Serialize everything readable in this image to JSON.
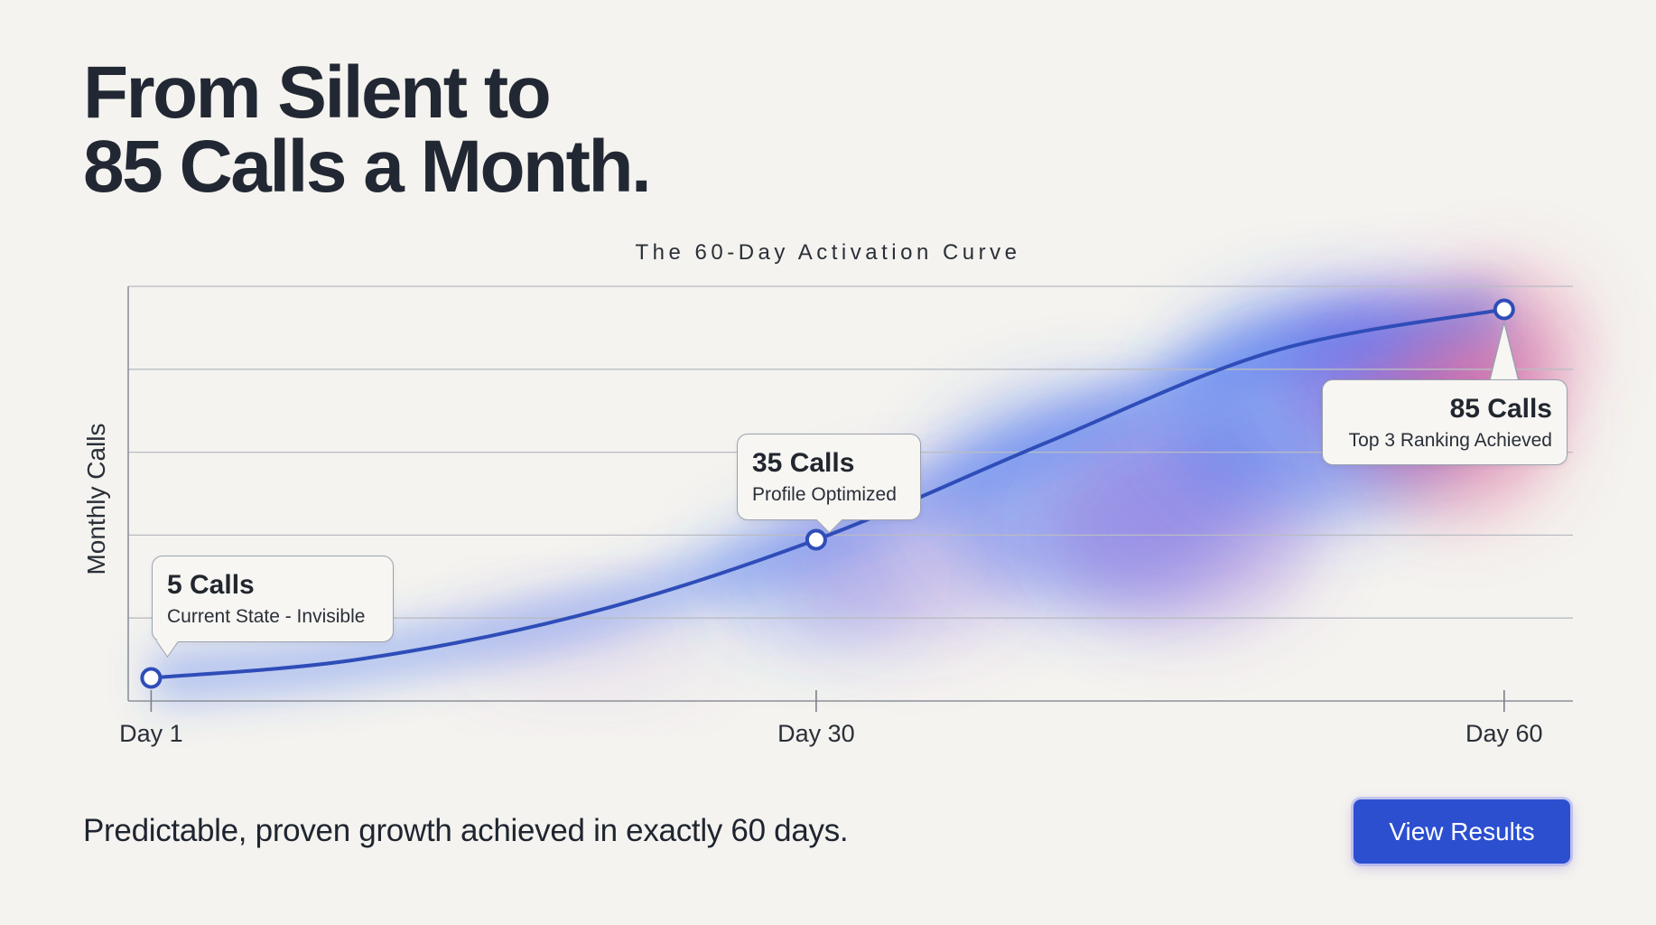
{
  "headline": {
    "line1": "From Silent to",
    "line2": "85 Calls a Month."
  },
  "chart_data": {
    "type": "line",
    "title": "The 60-Day Activation Curve",
    "xlabel": "",
    "ylabel": "Monthly Calls",
    "x_ticks": [
      {
        "value": 1,
        "label": "Day 1"
      },
      {
        "value": 30,
        "label": "Day 30"
      },
      {
        "value": 60,
        "label": "Day 60"
      }
    ],
    "xlim": [
      0,
      63
    ],
    "ylim": [
      0,
      90
    ],
    "grid": true,
    "series": [
      {
        "values": [
          {
            "x": 1,
            "y": 5
          },
          {
            "x": 10,
            "y": 9
          },
          {
            "x": 20,
            "y": 19
          },
          {
            "x": 30,
            "y": 35
          },
          {
            "x": 40,
            "y": 56
          },
          {
            "x": 50,
            "y": 76
          },
          {
            "x": 60,
            "y": 85
          }
        ],
        "color": "#2f4db8"
      }
    ],
    "annotations": [
      {
        "x": 1,
        "y": 5,
        "label": "5 Calls",
        "sublabel": "Current State - Invisible"
      },
      {
        "x": 30,
        "y": 35,
        "label": "35 Calls",
        "sublabel": "Profile Optimized"
      },
      {
        "x": 60,
        "y": 85,
        "label": "85 Calls",
        "sublabel": "Top 3 Ranking Achieved"
      }
    ]
  },
  "footer": {
    "tagline": "Predictable, proven growth achieved in exactly 60 days.",
    "cta_label": "View Results"
  },
  "colors": {
    "accent": "#2c4fd0",
    "line": "#2f4db8",
    "glow_blue": "#3d6af0",
    "glow_purple": "#8a4fd6",
    "glow_pink": "#e35a8a",
    "background": "#f4f3ef"
  }
}
